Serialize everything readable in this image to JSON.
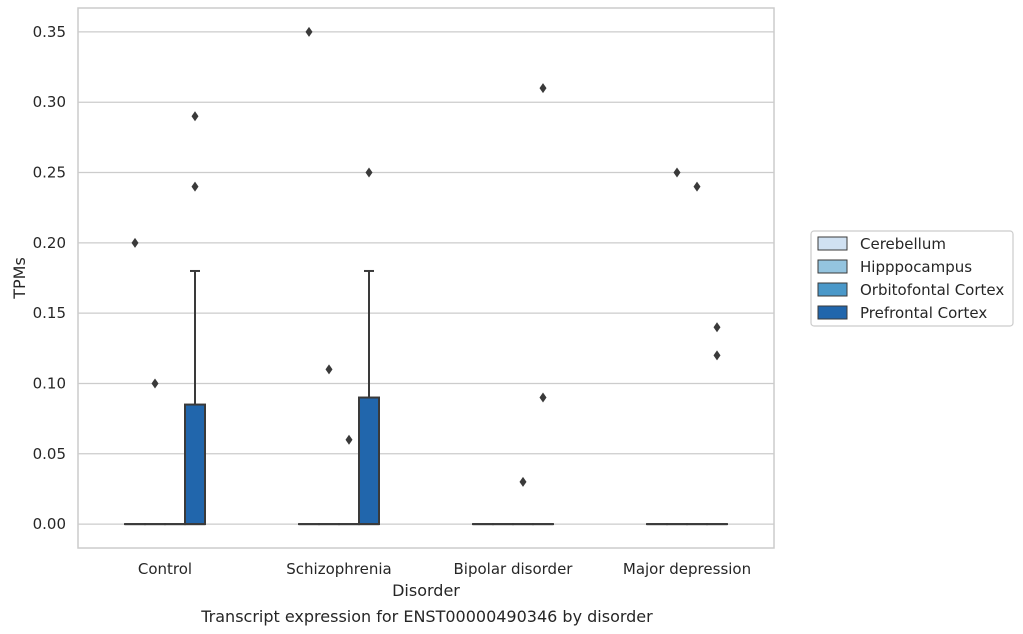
{
  "chart_data": {
    "type": "box",
    "xlabel": "Disorder",
    "ylabel": "TPMs",
    "caption": "Transcript expression for ENST00000490346 by disorder",
    "categories": [
      "Control",
      "Schizophrenia",
      "Bipolar disorder",
      "Major depression"
    ],
    "ylim": [
      -0.017,
      0.367
    ],
    "yticks": [
      0.0,
      0.05,
      0.1,
      0.15,
      0.2,
      0.25,
      0.3,
      0.35
    ],
    "ytick_labels": [
      "0.00",
      "0.05",
      "0.10",
      "0.15",
      "0.20",
      "0.25",
      "0.30",
      "0.35"
    ],
    "grid": true,
    "legend_position": "right",
    "series": [
      {
        "name": "Cerebellum",
        "color": "#d0e1f2",
        "boxes": [
          {
            "q1": 0,
            "median": 0,
            "q3": 0,
            "whislo": 0,
            "whishi": 0,
            "fliers": [
              0.2
            ]
          },
          {
            "q1": 0,
            "median": 0,
            "q3": 0,
            "whislo": 0,
            "whishi": 0,
            "fliers": [
              0.35
            ]
          },
          {
            "q1": 0,
            "median": 0,
            "q3": 0,
            "whislo": 0,
            "whishi": 0,
            "fliers": []
          },
          {
            "q1": 0,
            "median": 0,
            "q3": 0,
            "whislo": 0,
            "whishi": 0,
            "fliers": []
          }
        ]
      },
      {
        "name": "Hipppocampus",
        "color": "#94c4df",
        "boxes": [
          {
            "q1": 0,
            "median": 0,
            "q3": 0,
            "whislo": 0,
            "whishi": 0,
            "fliers": [
              0.1
            ]
          },
          {
            "q1": 0,
            "median": 0,
            "q3": 0,
            "whislo": 0,
            "whishi": 0,
            "fliers": [
              0.11
            ]
          },
          {
            "q1": 0,
            "median": 0,
            "q3": 0,
            "whislo": 0,
            "whishi": 0,
            "fliers": []
          },
          {
            "q1": 0,
            "median": 0,
            "q3": 0,
            "whislo": 0,
            "whishi": 0,
            "fliers": [
              0.25
            ]
          }
        ]
      },
      {
        "name": "Orbitofontal Cortex",
        "color": "#4a98c9",
        "boxes": [
          {
            "q1": 0,
            "median": 0,
            "q3": 0,
            "whislo": 0,
            "whishi": 0,
            "fliers": []
          },
          {
            "q1": 0,
            "median": 0,
            "q3": 0,
            "whislo": 0,
            "whishi": 0,
            "fliers": [
              0.06
            ]
          },
          {
            "q1": 0,
            "median": 0,
            "q3": 0,
            "whislo": 0,
            "whishi": 0,
            "fliers": [
              0.03
            ]
          },
          {
            "q1": 0,
            "median": 0,
            "q3": 0,
            "whislo": 0,
            "whishi": 0,
            "fliers": [
              0.24
            ]
          }
        ]
      },
      {
        "name": "Prefrontal Cortex",
        "color": "#2166ac",
        "boxes": [
          {
            "q1": 0,
            "median": 0,
            "q3": 0.085,
            "whislo": 0,
            "whishi": 0.18,
            "fliers": [
              0.24,
              0.29
            ]
          },
          {
            "q1": 0,
            "median": 0,
            "q3": 0.09,
            "whislo": 0,
            "whishi": 0.18,
            "fliers": [
              0.25
            ]
          },
          {
            "q1": 0,
            "median": 0,
            "q3": 0,
            "whislo": 0,
            "whishi": 0,
            "fliers": [
              0.09,
              0.31
            ]
          },
          {
            "q1": 0,
            "median": 0,
            "q3": 0,
            "whislo": 0,
            "whishi": 0,
            "fliers": [
              0.12,
              0.14
            ]
          }
        ]
      }
    ]
  }
}
